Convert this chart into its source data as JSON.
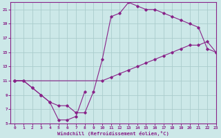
{
  "xlabel": "Windchill (Refroidissement éolien,°C)",
  "background_color": "#cce8e8",
  "grid_color": "#aacccc",
  "line_color": "#882288",
  "xlim": [
    -0.5,
    23
  ],
  "ylim": [
    5,
    22
  ],
  "xticks": [
    0,
    1,
    2,
    3,
    4,
    5,
    6,
    7,
    8,
    9,
    10,
    11,
    12,
    13,
    14,
    15,
    16,
    17,
    18,
    19,
    20,
    21,
    22,
    23
  ],
  "yticks": [
    5,
    7,
    9,
    11,
    13,
    15,
    17,
    19,
    21
  ],
  "line1_x": [
    0,
    1,
    2,
    3,
    4,
    5,
    6,
    7,
    8,
    9,
    10,
    11,
    12,
    13,
    14,
    15,
    16,
    17,
    18,
    19,
    20,
    21,
    22,
    23
  ],
  "line1_y": [
    11,
    11,
    10,
    9,
    8,
    7.5,
    7.5,
    6.5,
    6.5,
    9.5,
    14,
    20,
    20.5,
    22,
    21.5,
    21,
    21,
    20.5,
    20,
    19.5,
    19,
    18.5,
    15.5,
    15
  ],
  "line2_x": [
    0,
    1,
    2,
    3,
    4,
    5,
    6,
    7,
    8
  ],
  "line2_y": [
    11,
    11,
    10,
    9,
    8,
    5.5,
    5.5,
    6.0,
    9.5
  ],
  "line3_x": [
    0,
    10,
    11,
    12,
    13,
    14,
    15,
    16,
    17,
    18,
    19,
    20,
    21,
    22,
    23
  ],
  "line3_y": [
    11,
    11,
    11.5,
    12,
    12.5,
    13,
    13.5,
    14,
    14.5,
    15,
    15.5,
    16,
    16,
    16.5,
    15
  ]
}
